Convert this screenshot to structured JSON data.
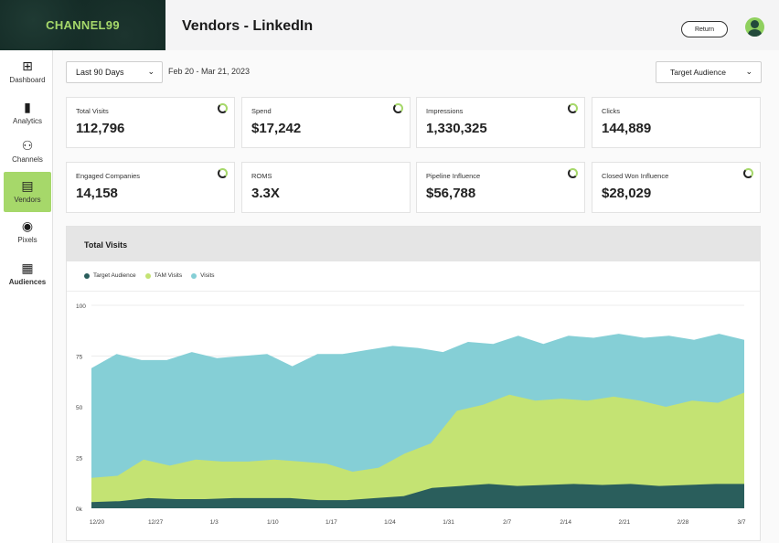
{
  "brand": {
    "logo_text": "CHANNEL99"
  },
  "header": {
    "title": "Vendors - LinkedIn",
    "return_label": "Return"
  },
  "sidebar": {
    "items": [
      {
        "label": "Dashboard",
        "icon": "dashboard-icon",
        "glyph": "⊞"
      },
      {
        "label": "Analytics",
        "icon": "bar-chart-icon",
        "glyph": "▮"
      },
      {
        "label": "Channels",
        "icon": "channels-icon",
        "glyph": "⚇"
      },
      {
        "label": "Vendors",
        "icon": "vendors-icon",
        "glyph": "▤"
      },
      {
        "label": "Pixels",
        "icon": "pixel-signal-icon",
        "glyph": "◉"
      },
      {
        "label": "Audiences",
        "icon": "audiences-icon",
        "glyph": "▦"
      }
    ]
  },
  "filters": {
    "range_value": "Last 90 Days",
    "date_range": "Feb 20 - Mar 21, 2023",
    "audience_value": "Target Audience"
  },
  "metrics": [
    {
      "label": "Total Visits",
      "value": "112,796",
      "spinner": true
    },
    {
      "label": "Spend",
      "value": "$17,242",
      "spinner": true
    },
    {
      "label": "Impressions",
      "value": "1,330,325",
      "spinner": true
    },
    {
      "label": "Clicks",
      "value": "144,889",
      "spinner": false
    },
    {
      "label": "Engaged Companies",
      "value": "14,158",
      "spinner": true
    },
    {
      "label": "ROMS",
      "value": "3.3X",
      "spinner": false
    },
    {
      "label": "Pipeline Influence",
      "value": "$56,788",
      "spinner": true
    },
    {
      "label": "Closed Won Influence",
      "value": "$28,029",
      "spinner": true
    }
  ],
  "chart_data": {
    "type": "area",
    "title": "Total Visits",
    "x_tick_labels": [
      "12/20",
      "12/27",
      "1/3",
      "1/10",
      "1/17",
      "1/24",
      "1/31",
      "2/7",
      "2/14",
      "2/21",
      "2/28",
      "3/7"
    ],
    "y_tick_labels": [
      "0k",
      "25",
      "50",
      "75",
      "100"
    ],
    "ylim": [
      0,
      100
    ],
    "legend": "top-left",
    "grid": true,
    "series": [
      {
        "name": "Target Audience",
        "color": "#2a5e5c",
        "values": [
          3,
          3.5,
          5,
          4.5,
          4.5,
          5,
          5,
          5,
          4,
          4,
          5,
          6,
          10,
          11,
          12,
          11,
          11.5,
          12,
          11.5,
          12,
          11,
          11.5,
          12,
          12
        ]
      },
      {
        "name": "TAM Visits",
        "color": "#c4e373",
        "values": [
          15,
          16,
          24,
          21,
          24,
          23,
          23,
          24,
          23,
          22,
          18,
          20,
          27,
          32,
          48,
          51,
          56,
          53,
          54,
          53,
          55,
          53,
          50,
          53,
          52,
          57
        ]
      },
      {
        "name": "Visits",
        "color": "#85cfd6",
        "values": [
          69,
          76,
          73,
          73,
          77,
          74,
          75,
          76,
          70,
          76,
          76,
          78,
          80,
          79,
          77,
          82,
          81,
          85,
          81,
          85,
          84,
          86,
          84,
          85,
          83,
          86,
          83
        ]
      }
    ]
  }
}
